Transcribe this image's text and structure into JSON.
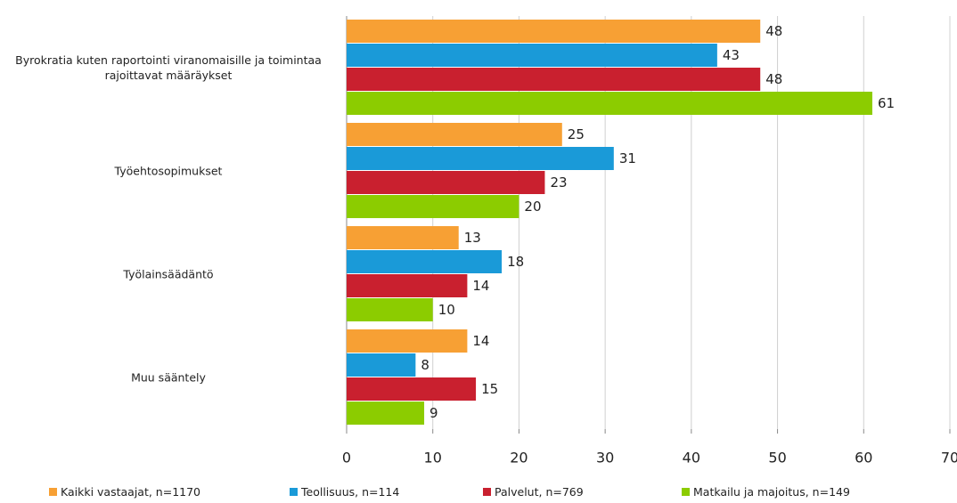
{
  "chart_data": {
    "type": "bar",
    "orientation": "horizontal",
    "categories": [
      "Byrokratia kuten raportointi viranomaisille ja toimintaa rajoittavat määräykset",
      "Työehtosopimukset",
      "Työlainsäädäntö",
      "Muu sääntely"
    ],
    "series": [
      {
        "name": "Kaikki vastaajat, n=1170",
        "color": "#f7a034",
        "values": [
          48,
          25,
          13,
          14
        ]
      },
      {
        "name": "Teollisuus, n=114",
        "color": "#1a9ad8",
        "values": [
          43,
          31,
          18,
          8
        ]
      },
      {
        "name": "Palvelut, n=769",
        "color": "#c9202f",
        "values": [
          48,
          23,
          14,
          15
        ]
      },
      {
        "name": "Matkailu ja majoitus, n=149",
        "color": "#8ccc00",
        "values": [
          61,
          20,
          10,
          9
        ]
      }
    ],
    "xlim": [
      0,
      70
    ],
    "xticks": [
      0,
      10,
      20,
      30,
      40,
      50,
      60,
      70
    ],
    "grid": true,
    "legend": "bottom"
  }
}
